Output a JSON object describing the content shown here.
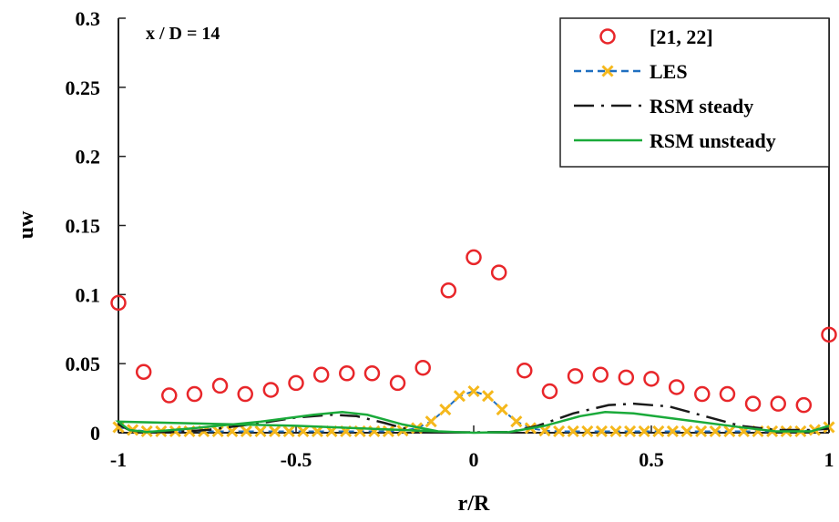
{
  "chart_data": {
    "type": "line",
    "annotation": "x / D = 14",
    "xlabel": "r/R",
    "ylabel": "uw",
    "xlim": [
      -1,
      1
    ],
    "ylim": [
      0,
      0.3
    ],
    "xticks": [
      "-1",
      "-0.5",
      "0",
      "0.5",
      "1"
    ],
    "yticks": [
      "0",
      "0.05",
      "0.1",
      "0.15",
      "0.2",
      "0.25",
      "0.3"
    ],
    "grid": false,
    "legend_position": "top-right",
    "series": [
      {
        "name": "[21, 22]",
        "style": "markers-circle",
        "color": "#e8262a",
        "x": [
          -1,
          -0.929,
          -0.857,
          -0.786,
          -0.714,
          -0.643,
          -0.571,
          -0.5,
          -0.429,
          -0.357,
          -0.286,
          -0.214,
          -0.143,
          -0.071,
          0,
          0.071,
          0.143,
          0.214,
          0.286,
          0.357,
          0.429,
          0.5,
          0.571,
          0.643,
          0.714,
          0.786,
          0.857,
          0.929,
          1
        ],
        "y": [
          0.094,
          0.044,
          0.027,
          0.028,
          0.034,
          0.028,
          0.031,
          0.036,
          0.042,
          0.043,
          0.043,
          0.036,
          0.047,
          0.103,
          0.127,
          0.116,
          0.045,
          0.03,
          0.041,
          0.042,
          0.04,
          0.039,
          0.033,
          0.028,
          0.028,
          0.021,
          0.021,
          0.02,
          0.071
        ]
      },
      {
        "name": "LES",
        "style": "dashed-with-x",
        "color": "#1f6fc0",
        "marker_color": "#f5b81c",
        "x": [
          -1,
          -0.96,
          -0.92,
          -0.88,
          -0.84,
          -0.8,
          -0.76,
          -0.72,
          -0.68,
          -0.64,
          -0.6,
          -0.56,
          -0.52,
          -0.48,
          -0.44,
          -0.4,
          -0.36,
          -0.32,
          -0.28,
          -0.24,
          -0.2,
          -0.16,
          -0.12,
          -0.08,
          -0.04,
          0,
          0.04,
          0.08,
          0.12,
          0.16,
          0.2,
          0.24,
          0.28,
          0.32,
          0.36,
          0.4,
          0.44,
          0.48,
          0.52,
          0.56,
          0.6,
          0.64,
          0.68,
          0.72,
          0.76,
          0.8,
          0.84,
          0.88,
          0.92,
          0.96,
          1
        ],
        "y": [
          0.004,
          0.002,
          0.001,
          0.001,
          0.001,
          0.001,
          0.001,
          0.001,
          0.001,
          0.001,
          0.001,
          0.001,
          0.001,
          0.001,
          0.001,
          0.001,
          0.001,
          0.001,
          0.001,
          0.001,
          0.0015,
          0.0033,
          0.0081,
          0.0168,
          0.0266,
          0.03,
          0.0266,
          0.0168,
          0.0081,
          0.0033,
          0.0015,
          0.001,
          0.001,
          0.001,
          0.001,
          0.001,
          0.001,
          0.001,
          0.001,
          0.001,
          0.001,
          0.001,
          0.001,
          0.001,
          0.001,
          0.001,
          0.001,
          0.001,
          0.001,
          0.002,
          0.004
        ]
      },
      {
        "name": "RSM steady",
        "style": "dash-dot",
        "color": "#1a1a1a",
        "x": [
          -1,
          -0.97,
          -0.93,
          -0.85,
          -0.75,
          -0.6,
          -0.5,
          -0.4,
          -0.33,
          -0.25,
          -0.18,
          -0.12,
          0,
          0.1,
          0.18,
          0.28,
          0.38,
          0.45,
          0.55,
          0.65,
          0.75,
          0.85,
          0.95,
          1
        ],
        "y": [
          0.006,
          0.002,
          0.0005,
          0.0005,
          0.002,
          0.007,
          0.011,
          0.013,
          0.012,
          0.007,
          0.002,
          0.0005,
          0.0003,
          0.0005,
          0.005,
          0.014,
          0.02,
          0.021,
          0.019,
          0.012,
          0.005,
          0.002,
          0.002,
          0.003
        ]
      },
      {
        "name": "RSM unsteady",
        "style": "solid",
        "color": "#1aaa3a",
        "x": [
          0,
          -0.1,
          -0.2,
          -0.3,
          -0.37,
          -0.45,
          -0.6,
          -0.8,
          -0.92,
          -0.97,
          -1,
          -0.5,
          -0.2,
          0,
          0.1,
          0.2,
          0.3,
          0.37,
          0.45,
          0.6,
          0.75,
          0.85,
          0.95,
          1
        ],
        "y": [
          0,
          0.001,
          0.006,
          0.013,
          0.015,
          0.013,
          0.008,
          0.003,
          0.0005,
          0.002,
          0.008,
          0.005,
          0.002,
          0,
          0.0005,
          0.005,
          0.012,
          0.015,
          0.014,
          0.009,
          0.004,
          0.001,
          0.001,
          0.005
        ]
      }
    ]
  }
}
